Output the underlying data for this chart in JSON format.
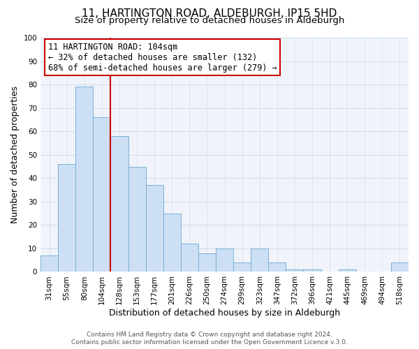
{
  "title": "11, HARTINGTON ROAD, ALDEBURGH, IP15 5HD",
  "subtitle": "Size of property relative to detached houses in Aldeburgh",
  "xlabel": "Distribution of detached houses by size in Aldeburgh",
  "ylabel": "Number of detached properties",
  "bar_labels": [
    "31sqm",
    "55sqm",
    "80sqm",
    "104sqm",
    "128sqm",
    "153sqm",
    "177sqm",
    "201sqm",
    "226sqm",
    "250sqm",
    "274sqm",
    "299sqm",
    "323sqm",
    "347sqm",
    "372sqm",
    "396sqm",
    "421sqm",
    "445sqm",
    "469sqm",
    "494sqm",
    "518sqm"
  ],
  "bar_heights": [
    7,
    46,
    79,
    66,
    58,
    45,
    37,
    25,
    12,
    8,
    10,
    4,
    10,
    4,
    1,
    1,
    0,
    1,
    0,
    0,
    4
  ],
  "bar_color": "#ccdff5",
  "bar_edge_color": "#7aafd4",
  "vline_x": 3,
  "vline_color": "#cc0000",
  "annotation_text_line1": "11 HARTINGTON ROAD: 104sqm",
  "annotation_text_line2": "← 32% of detached houses are smaller (132)",
  "annotation_text_line3": "68% of semi-detached houses are larger (279) →",
  "annotation_box_color": "#ffffff",
  "annotation_box_edge": "#cc0000",
  "ylim": [
    0,
    100
  ],
  "yticks": [
    0,
    10,
    20,
    30,
    40,
    50,
    60,
    70,
    80,
    90,
    100
  ],
  "footer_line1": "Contains HM Land Registry data © Crown copyright and database right 2024.",
  "footer_line2": "Contains public sector information licensed under the Open Government Licence v.3.0.",
  "title_fontsize": 11,
  "subtitle_fontsize": 9.5,
  "axis_label_fontsize": 9,
  "tick_fontsize": 7.5,
  "annotation_fontsize": 8.5,
  "footer_fontsize": 6.5,
  "grid_color": "#d0dcea",
  "bg_color": "#f0f4fa"
}
